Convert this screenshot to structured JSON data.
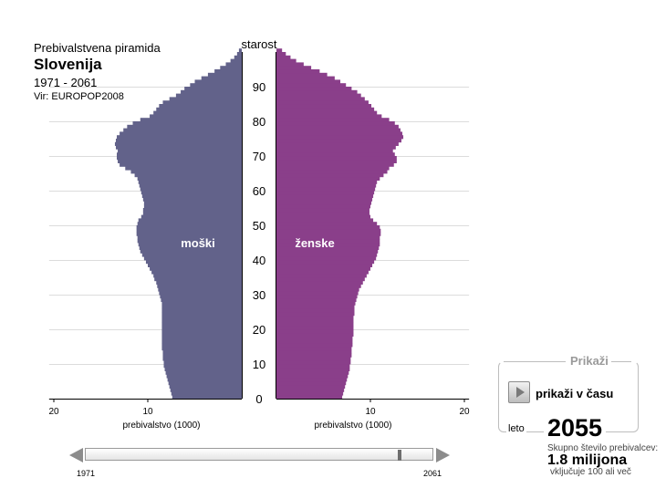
{
  "header": {
    "supertitle": "Prebivalstvena piramida",
    "title": "Slovenija",
    "years": "1971 - 2061",
    "source": "Vir: EUROPOP2008"
  },
  "chart_data": {
    "type": "bar",
    "orientation": "horizontal",
    "age_axis_label": "starost",
    "age_ticks": [
      0,
      10,
      20,
      30,
      40,
      50,
      60,
      70,
      80,
      90
    ],
    "age_range": [
      0,
      100
    ],
    "x_ticks_left": [
      20,
      10
    ],
    "x_ticks_right": [
      10,
      20
    ],
    "xlabel_left": "prebivalstvo (1000)",
    "xlabel_right": "prebivalstvo (1000)",
    "xlim": [
      0,
      20.5
    ],
    "grid": true,
    "colors": {
      "male": "#62628a",
      "female": "#8a3f8a"
    },
    "series": [
      {
        "name": "moški",
        "values": [
          7.4,
          7.5,
          7.6,
          7.7,
          7.8,
          7.9,
          8.0,
          8.1,
          8.2,
          8.3,
          8.3,
          8.4,
          8.4,
          8.4,
          8.5,
          8.5,
          8.5,
          8.5,
          8.5,
          8.5,
          8.5,
          8.5,
          8.5,
          8.5,
          8.5,
          8.5,
          8.5,
          8.5,
          8.6,
          8.7,
          8.8,
          8.9,
          9.0,
          9.1,
          9.3,
          9.4,
          9.6,
          9.8,
          10.0,
          10.2,
          10.4,
          10.6,
          10.8,
          10.9,
          11.0,
          11.1,
          11.1,
          11.2,
          11.2,
          11.2,
          11.1,
          11.0,
          10.7,
          10.5,
          10.5,
          10.4,
          10.4,
          10.5,
          10.6,
          10.7,
          10.8,
          10.9,
          11.0,
          11.1,
          11.4,
          11.8,
          12.4,
          13.0,
          13.2,
          13.3,
          13.3,
          13.2,
          13.4,
          13.5,
          13.4,
          13.3,
          13.0,
          12.6,
          12.2,
          11.6,
          10.8,
          9.8,
          9.4,
          9.1,
          8.8,
          8.4,
          7.7,
          7.0,
          6.5,
          6.1,
          5.5,
          5.0,
          4.3,
          3.6,
          2.9,
          2.3,
          1.7,
          1.2,
          0.8,
          0.5,
          0.3
        ]
      },
      {
        "name": "ženske",
        "values": [
          7.0,
          7.1,
          7.2,
          7.3,
          7.4,
          7.5,
          7.6,
          7.7,
          7.8,
          7.8,
          7.9,
          7.9,
          8.0,
          8.0,
          8.0,
          8.1,
          8.1,
          8.1,
          8.2,
          8.2,
          8.2,
          8.2,
          8.2,
          8.2,
          8.3,
          8.3,
          8.3,
          8.4,
          8.5,
          8.6,
          8.7,
          8.8,
          9.0,
          9.2,
          9.4,
          9.6,
          9.8,
          10.0,
          10.2,
          10.4,
          10.6,
          10.7,
          10.8,
          10.9,
          11.0,
          11.0,
          11.0,
          11.1,
          11.1,
          11.0,
          10.7,
          10.3,
          10.0,
          9.9,
          9.9,
          10.0,
          10.1,
          10.2,
          10.3,
          10.4,
          10.5,
          10.6,
          10.7,
          11.0,
          11.4,
          11.8,
          12.0,
          12.5,
          12.8,
          12.8,
          12.6,
          12.4,
          12.7,
          13.0,
          13.3,
          13.5,
          13.4,
          13.2,
          13.0,
          12.6,
          12.0,
          11.2,
          10.7,
          10.4,
          10.1,
          9.8,
          9.4,
          9.0,
          8.6,
          8.0,
          7.4,
          6.8,
          6.2,
          5.4,
          4.6,
          3.7,
          2.9,
          2.1,
          1.5,
          1.0,
          0.6
        ]
      }
    ]
  },
  "controls": {
    "legend": "Prikaži",
    "play_label": "prikaži v času",
    "year_label": "leto",
    "year": "2055",
    "total_label": "Skupno število prebivalcev:",
    "total_value": "1.8 milijona",
    "total_note": "vključuje 100 ali več"
  },
  "slider": {
    "start": "1971",
    "end": "2061",
    "current": 2055,
    "min": 1971,
    "max": 2061
  }
}
